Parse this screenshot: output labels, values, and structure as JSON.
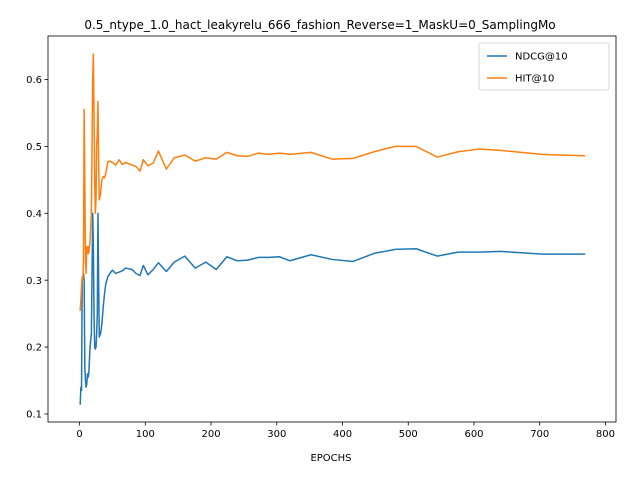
{
  "chart_data": {
    "type": "line",
    "title": "0.5_ntype_1.0_hact_leakyrelu_666_fashion_Reverse=1_MaskU=0_SamplingMo",
    "xlabel": "EPOCHS",
    "ylabel": "",
    "xlim": [
      -48,
      816
    ],
    "ylim": [
      0.088,
      0.665
    ],
    "xticks": [
      0,
      100,
      200,
      300,
      400,
      500,
      600,
      700,
      800
    ],
    "yticks": [
      0.1,
      0.2,
      0.3,
      0.4,
      0.5,
      0.6
    ],
    "grid": false,
    "legend_position": "top-right",
    "series": [
      {
        "name": "NDCG@10",
        "color": "#1f77b4",
        "x": [
          1,
          2,
          3,
          4,
          5,
          6,
          7,
          8,
          9,
          10,
          11,
          12,
          13,
          14,
          16,
          18,
          20,
          21,
          22,
          23,
          24,
          25,
          26,
          27,
          28,
          29,
          30,
          31,
          32,
          34,
          36,
          38,
          40,
          43,
          46,
          50,
          55,
          60,
          65,
          70,
          75,
          80,
          86,
          92,
          97,
          104,
          112,
          120,
          132,
          144,
          160,
          176,
          192,
          208,
          224,
          240,
          256,
          272,
          288,
          304,
          320,
          352,
          384,
          416,
          448,
          480,
          512,
          544,
          576,
          608,
          640,
          672,
          704,
          736,
          768
        ],
        "y": [
          0.115,
          0.14,
          0.135,
          0.3,
          0.305,
          0.31,
          0.3,
          0.17,
          0.15,
          0.14,
          0.145,
          0.16,
          0.155,
          0.16,
          0.2,
          0.22,
          0.4,
          0.35,
          0.25,
          0.2,
          0.197,
          0.2,
          0.22,
          0.25,
          0.4,
          0.3,
          0.215,
          0.218,
          0.22,
          0.235,
          0.26,
          0.28,
          0.295,
          0.305,
          0.31,
          0.315,
          0.31,
          0.312,
          0.314,
          0.318,
          0.317,
          0.316,
          0.31,
          0.307,
          0.322,
          0.308,
          0.316,
          0.326,
          0.313,
          0.327,
          0.336,
          0.318,
          0.327,
          0.316,
          0.335,
          0.329,
          0.33,
          0.334,
          0.334,
          0.335,
          0.329,
          0.338,
          0.331,
          0.328,
          0.34,
          0.346,
          0.347,
          0.336,
          0.342,
          0.342,
          0.343,
          0.341,
          0.339,
          0.339,
          0.339
        ]
      },
      {
        "name": "HIT@10",
        "color": "#ff7f0e",
        "x": [
          1,
          2,
          3,
          4,
          5,
          6,
          7,
          8,
          9,
          10,
          11,
          12,
          13,
          14,
          16,
          18,
          20,
          21,
          22,
          23,
          24,
          25,
          26,
          27,
          28,
          29,
          30,
          31,
          32,
          34,
          36,
          38,
          40,
          43,
          46,
          50,
          55,
          60,
          65,
          70,
          75,
          80,
          86,
          92,
          97,
          104,
          112,
          120,
          132,
          144,
          160,
          176,
          192,
          208,
          224,
          240,
          256,
          272,
          288,
          304,
          320,
          352,
          384,
          416,
          448,
          480,
          512,
          544,
          576,
          608,
          640,
          672,
          704,
          736,
          768
        ],
        "y": [
          0.255,
          0.27,
          0.29,
          0.305,
          0.3,
          0.33,
          0.555,
          0.45,
          0.33,
          0.31,
          0.35,
          0.34,
          0.35,
          0.34,
          0.36,
          0.4,
          0.6,
          0.638,
          0.55,
          0.45,
          0.4,
          0.42,
          0.5,
          0.52,
          0.567,
          0.48,
          0.42,
          0.425,
          0.43,
          0.45,
          0.455,
          0.453,
          0.46,
          0.477,
          0.478,
          0.476,
          0.472,
          0.48,
          0.473,
          0.476,
          0.474,
          0.472,
          0.47,
          0.463,
          0.48,
          0.471,
          0.475,
          0.493,
          0.466,
          0.483,
          0.487,
          0.478,
          0.483,
          0.481,
          0.491,
          0.486,
          0.485,
          0.49,
          0.488,
          0.49,
          0.488,
          0.491,
          0.481,
          0.482,
          0.492,
          0.5,
          0.5,
          0.484,
          0.492,
          0.496,
          0.494,
          0.491,
          0.488,
          0.487,
          0.486
        ]
      }
    ]
  }
}
